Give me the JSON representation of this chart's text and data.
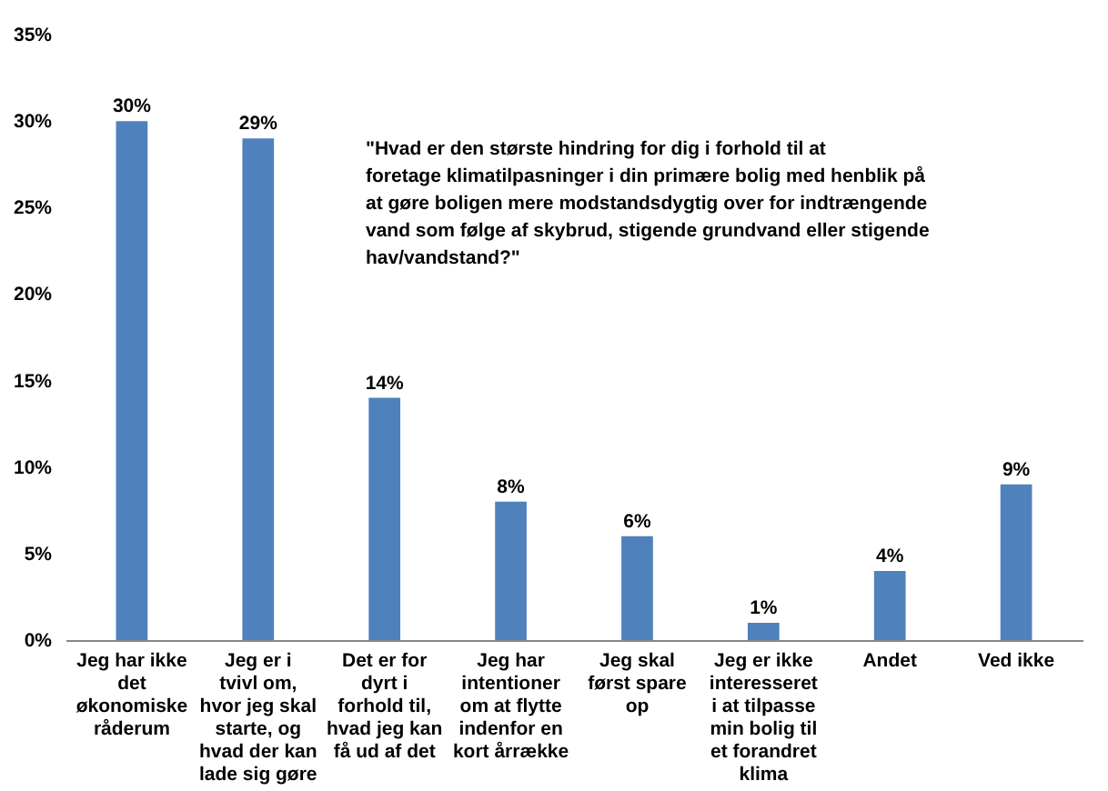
{
  "chart_data": {
    "type": "bar",
    "categories": [
      "Jeg har ikke det økonomiske råderum",
      "Jeg er i tvivl om, hvor jeg skal starte, og hvad der kan lade sig gøre",
      "Det er for dyrt i forhold til, hvad jeg kan få ud af det",
      "Jeg har intentioner om at flytte indenfor en kort årrække",
      "Jeg skal først spare op",
      "Jeg er ikke interesseret i at tilpasse min bolig til et forandret klima",
      "Andet",
      "Ved ikke"
    ],
    "values": [
      30,
      29,
      14,
      8,
      6,
      1,
      4,
      9
    ],
    "color": "#4f81bd",
    "ylim": [
      0,
      35
    ],
    "yticks": [
      {
        "value": 0,
        "label": "0%"
      },
      {
        "value": 5,
        "label": "5%"
      },
      {
        "value": 10,
        "label": "10%"
      },
      {
        "value": 15,
        "label": "15%"
      },
      {
        "value": 20,
        "label": "20%"
      },
      {
        "value": 25,
        "label": "25%"
      },
      {
        "value": 30,
        "label": "30%"
      },
      {
        "value": 35,
        "label": "35%"
      }
    ],
    "value_labels": [
      "30%",
      "29%",
      "14%",
      "8%",
      "6%",
      "1%",
      "4%",
      "9%"
    ],
    "annotations": [
      "\"Hvad er den største hindring for dig i forhold til at foretage klimatilpasninger i din primære bolig med henblik på at gøre boligen mere modstandsdygtig over for indtrængende vand som følge af skybrud, stigende grundvand eller stigende hav/vandstand?\""
    ],
    "grid": false
  }
}
